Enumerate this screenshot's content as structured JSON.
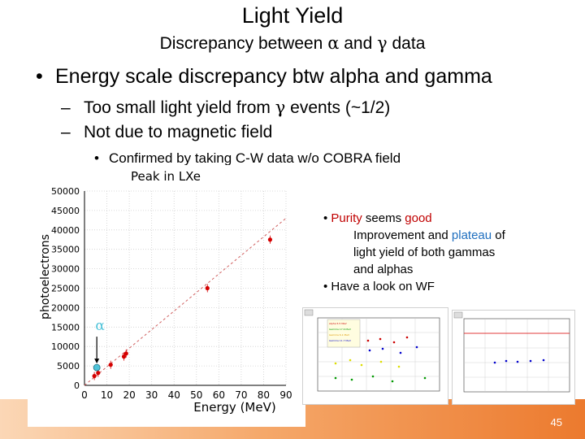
{
  "slide": {
    "title": "Light Yield",
    "subtitle_prefix": "Discrepancy between ",
    "subtitle_alpha": "α",
    "subtitle_and": " and ",
    "subtitle_gamma": "γ",
    "subtitle_suffix": " data",
    "bullet1": "Energy scale discrepancy btw alpha and gamma",
    "sub1_prefix": "Too small light yield from ",
    "sub1_gamma": "γ",
    "sub1_suffix": " events (~1/2)",
    "sub2": "Not due to magnetic field",
    "subsub1": "Confirmed by taking C-W data w/o COBRA field",
    "page_number": "45"
  },
  "notes": {
    "line1_a": "Purity",
    "line1_b": " seems ",
    "line1_c": "good",
    "line2_a": "Improvement and ",
    "line2_b": "plateau",
    "line2_c": " of",
    "line3": "light yield of both gammas",
    "line4": "and alphas",
    "line5": "Have a look on WF"
  },
  "colors": {
    "accent_red": "#c00000",
    "accent_blue": "#1f6fbf",
    "marker_red": "#d40000",
    "alpha_marker": "#4fc3d9",
    "footer_orange": "#ec7a2e"
  },
  "chart_data": {
    "type": "scatter",
    "title": "Peak in LXe",
    "xlabel": "Energy (MeV)",
    "ylabel": "photoelectrons",
    "xlim": [
      0,
      90
    ],
    "ylim": [
      0,
      50000
    ],
    "x_ticks": [
      "0",
      "10",
      "20",
      "30",
      "40",
      "50",
      "60",
      "70",
      "80",
      "90"
    ],
    "y_ticks": [
      "0",
      "5000",
      "10000",
      "15000",
      "20000",
      "25000",
      "30000",
      "35000",
      "40000",
      "45000",
      "50000"
    ],
    "alpha_label": "α",
    "series": [
      {
        "points": [
          [
            4.4,
            2400
          ],
          [
            6.1,
            3200
          ],
          [
            11.7,
            5300
          ],
          [
            17.6,
            7400
          ],
          [
            18.6,
            8200
          ],
          [
            54.9,
            25000
          ],
          [
            82.9,
            37500
          ]
        ]
      }
    ],
    "alpha_point": [
      5.5,
      5000
    ],
    "fit_line": [
      [
        0,
        0
      ],
      [
        90,
        43000
      ]
    ]
  }
}
